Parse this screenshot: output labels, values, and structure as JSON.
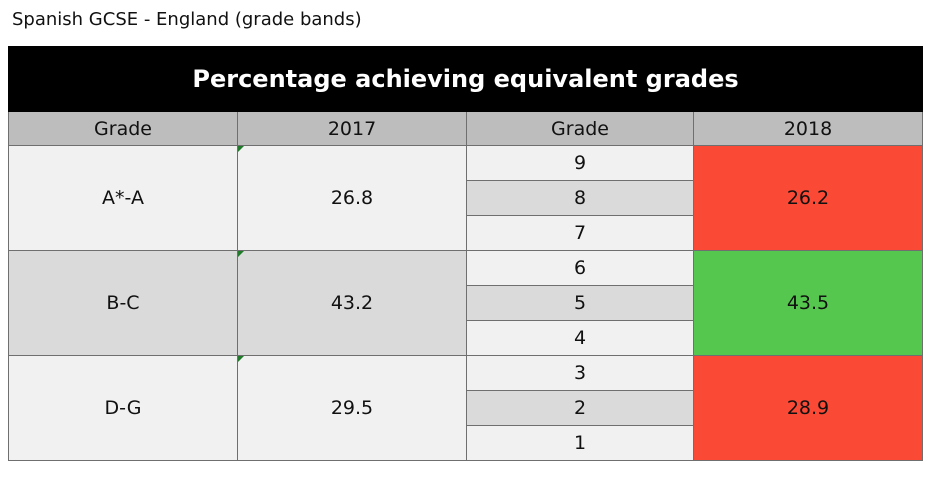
{
  "title": "Spanish GCSE - England (grade bands)",
  "table": {
    "banner": "Percentage achieving equivalent grades",
    "headers": [
      "Grade",
      "2017",
      "Grade",
      "2018"
    ],
    "bands": [
      {
        "grade": "A*-A",
        "value_2017": "26.8",
        "new_grades": [
          "9",
          "8",
          "7"
        ],
        "value_2018": "26.2",
        "color_2018": "#fa4a35"
      },
      {
        "grade": "B-C",
        "value_2017": "43.2",
        "new_grades": [
          "6",
          "5",
          "4"
        ],
        "value_2018": "43.5",
        "color_2018": "#55c74f"
      },
      {
        "grade": "D-G",
        "value_2017": "29.5",
        "new_grades": [
          "3",
          "2",
          "1"
        ],
        "value_2018": "28.9",
        "color_2018": "#fa4a35"
      }
    ]
  }
}
